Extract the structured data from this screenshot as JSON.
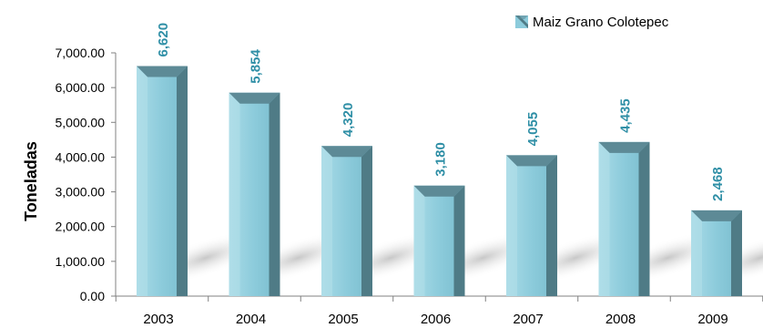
{
  "chart_data": {
    "type": "bar",
    "categories": [
      "2003",
      "2004",
      "2005",
      "2006",
      "2007",
      "2008",
      "2009"
    ],
    "series": [
      {
        "name": "Maiz Grano Colotepec",
        "values": [
          6620,
          5854,
          4320,
          3180,
          4055,
          4435,
          2468
        ],
        "value_labels": [
          "6,620",
          "5,854",
          "4,320",
          "3,180",
          "4,055",
          "4,435",
          "2,468"
        ]
      }
    ],
    "ylabel": "Toneladas",
    "xlabel": "",
    "ylim": [
      0,
      7000
    ],
    "yticks": [
      0,
      1000,
      2000,
      3000,
      4000,
      5000,
      6000,
      7000
    ],
    "ytick_labels": [
      "0.00",
      "1,000.00",
      "2,000.00",
      "3,000.00",
      "4,000.00",
      "5,000.00",
      "6,000.00",
      "7,000.00"
    ],
    "grid": false,
    "legend_position": "top-right",
    "colors": {
      "bar_front": "#8ccbdb",
      "bar_highlight": "#b4e0ea",
      "bar_side": "#4f7b86",
      "bar_top": "#5d8a96",
      "value_label": "#2f8fa6",
      "axis": "#808080"
    }
  }
}
